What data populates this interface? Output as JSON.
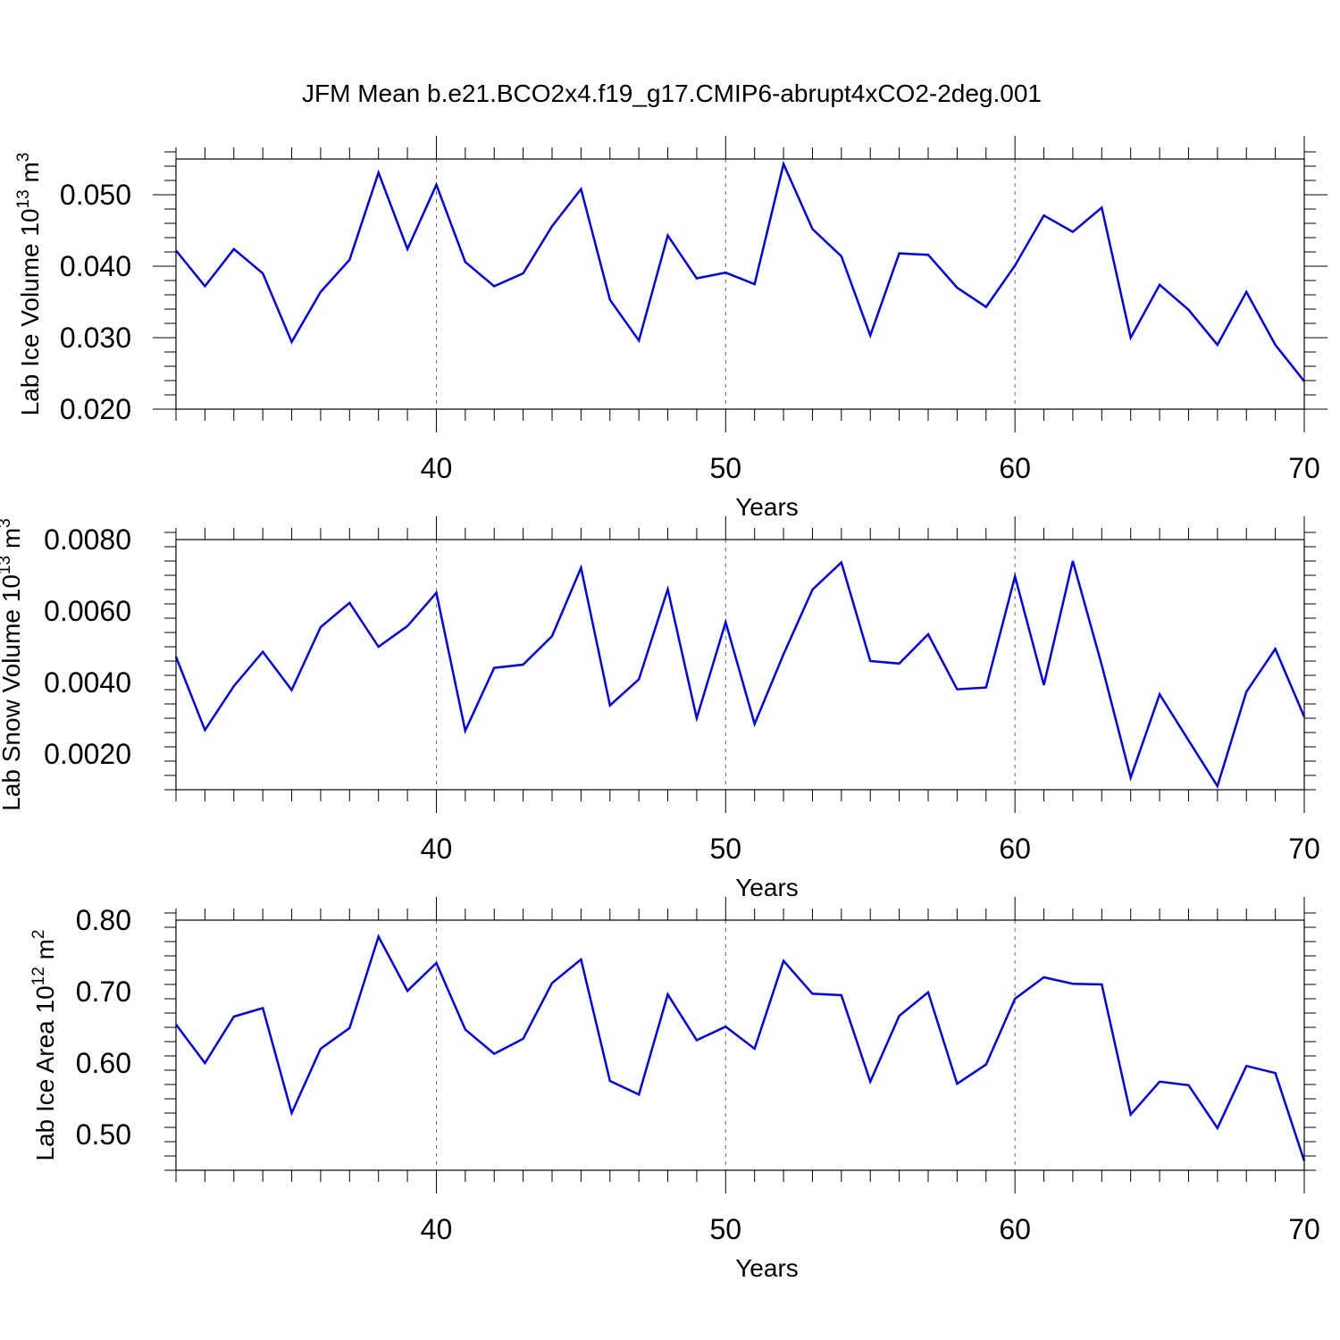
{
  "title": "JFM Mean b.e21.BCO2x4.f19_g17.CMIP6-abrupt4xCO2-2deg.001",
  "line_color": "#0000ff",
  "chart_data": [
    {
      "type": "line",
      "ylabel_main": "Lab Ice Volume 10",
      "ylabel_exp": "13",
      "ylabel_unit": " m",
      "ylabel_unit_exp": "3",
      "xlabel": "Years",
      "xlim": [
        31,
        70
      ],
      "ylim": [
        0.02,
        0.055
      ],
      "yticks": [
        0.02,
        0.03,
        0.04,
        0.05
      ],
      "yticklabels": [
        "0.020",
        "0.030",
        "0.040",
        "0.050"
      ],
      "xticks": [
        40,
        50,
        60,
        70
      ],
      "xticklabels": [
        "40",
        "50",
        "60",
        "70"
      ],
      "grid_x": [
        40,
        50,
        60
      ],
      "x": [
        31,
        32,
        33,
        34,
        35,
        36,
        37,
        38,
        39,
        40,
        41,
        42,
        43,
        44,
        45,
        46,
        47,
        48,
        49,
        50,
        51,
        52,
        53,
        54,
        55,
        56,
        57,
        58,
        59,
        60,
        61,
        62,
        63,
        64,
        65,
        66,
        67,
        68,
        69,
        70
      ],
      "series": [
        {
          "values": [
            0.0422,
            0.0372,
            0.0424,
            0.039,
            0.0294,
            0.0364,
            0.0409,
            0.0531,
            0.0424,
            0.0514,
            0.0406,
            0.0372,
            0.039,
            0.0456,
            0.0508,
            0.0353,
            0.0296,
            0.0443,
            0.0383,
            0.0391,
            0.0375,
            0.0543,
            0.0452,
            0.0414,
            0.0303,
            0.0418,
            0.0416,
            0.037,
            0.0343,
            0.0401,
            0.0471,
            0.0448,
            0.0482,
            0.03,
            0.0374,
            0.0339,
            0.029,
            0.0364,
            0.029,
            0.0239
          ]
        }
      ]
    },
    {
      "type": "line",
      "ylabel_main": "Lab Snow Volume 10",
      "ylabel_exp": "13",
      "ylabel_unit": " m",
      "ylabel_unit_exp": "3",
      "xlabel": "Years",
      "xlim": [
        31,
        70
      ],
      "ylim": [
        0.001,
        0.008
      ],
      "yticks": [
        0.002,
        0.004,
        0.006,
        0.008
      ],
      "yticklabels": [
        "0.0020",
        "0.0040",
        "0.0060",
        "0.0080"
      ],
      "xticks": [
        40,
        50,
        60,
        70
      ],
      "xticklabels": [
        "40",
        "50",
        "60",
        "70"
      ],
      "grid_x": [
        40,
        50,
        60
      ],
      "x": [
        31,
        32,
        33,
        34,
        35,
        36,
        37,
        38,
        39,
        40,
        41,
        42,
        43,
        44,
        45,
        46,
        47,
        48,
        49,
        50,
        51,
        52,
        53,
        54,
        55,
        56,
        57,
        58,
        59,
        60,
        61,
        62,
        63,
        64,
        65,
        66,
        67,
        68,
        69,
        70
      ],
      "series": [
        {
          "values": [
            0.00472,
            0.00267,
            0.0039,
            0.00486,
            0.00379,
            0.00555,
            0.00623,
            0.005,
            0.00558,
            0.00651,
            0.00265,
            0.00441,
            0.0045,
            0.0053,
            0.00721,
            0.00336,
            0.00409,
            0.00661,
            0.003,
            0.00569,
            0.00284,
            0.00479,
            0.0066,
            0.00736,
            0.0046,
            0.00453,
            0.00535,
            0.00381,
            0.00386,
            0.00697,
            0.00393,
            0.0074,
            0.00449,
            0.00134,
            0.00367,
            0.00238,
            0.0011,
            0.00374,
            0.00494,
            0.00304
          ]
        }
      ]
    },
    {
      "type": "line",
      "ylabel_main": "Lab Ice Area 10",
      "ylabel_exp": "12",
      "ylabel_unit": " m",
      "ylabel_unit_exp": "2",
      "xlabel": "Years",
      "xlim": [
        31,
        70
      ],
      "ylim": [
        0.45,
        0.8
      ],
      "yticks": [
        0.5,
        0.6,
        0.7,
        0.8
      ],
      "yticklabels": [
        "0.50",
        "0.60",
        "0.70",
        "0.80"
      ],
      "xticks": [
        40,
        50,
        60,
        70
      ],
      "xticklabels": [
        "40",
        "50",
        "60",
        "70"
      ],
      "grid_x": [
        40,
        50,
        60
      ],
      "x": [
        31,
        32,
        33,
        34,
        35,
        36,
        37,
        38,
        39,
        40,
        41,
        42,
        43,
        44,
        45,
        46,
        47,
        48,
        49,
        50,
        51,
        52,
        53,
        54,
        55,
        56,
        57,
        58,
        59,
        60,
        61,
        62,
        63,
        64,
        65,
        66,
        67,
        68,
        69,
        70
      ],
      "series": [
        {
          "values": [
            0.654,
            0.6,
            0.665,
            0.677,
            0.53,
            0.62,
            0.649,
            0.777,
            0.701,
            0.74,
            0.647,
            0.613,
            0.634,
            0.712,
            0.745,
            0.575,
            0.556,
            0.696,
            0.632,
            0.651,
            0.62,
            0.743,
            0.697,
            0.695,
            0.574,
            0.666,
            0.699,
            0.571,
            0.598,
            0.69,
            0.72,
            0.711,
            0.71,
            0.528,
            0.574,
            0.569,
            0.509,
            0.596,
            0.586,
            0.463
          ]
        }
      ]
    }
  ]
}
